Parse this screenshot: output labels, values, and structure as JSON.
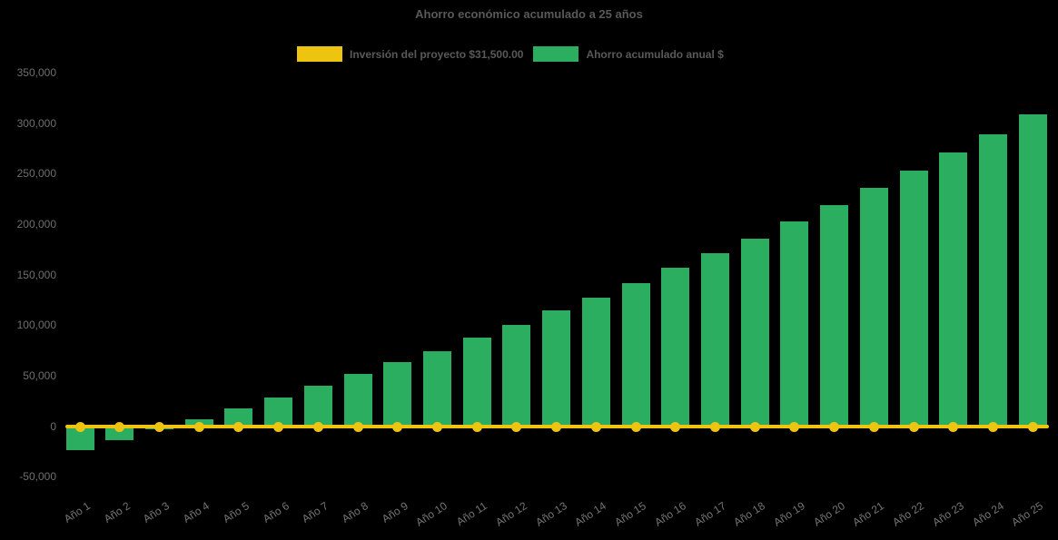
{
  "title": "Ahorro económico acumulado a 25 años",
  "legend": [
    {
      "label": "Inversión del proyecto $31,500.00",
      "color": "#EDC511",
      "series_type": "line"
    },
    {
      "label": "Ahorro acumulado anual $",
      "color": "#2BAE60",
      "series_type": "bar"
    }
  ],
  "chart_data": {
    "type": "bar",
    "title": "Ahorro económico acumulado a 25 años",
    "categories": [
      "Año 1",
      "Año 2",
      "Año 3",
      "Año 4",
      "Año 5",
      "Año 6",
      "Año 7",
      "Año 8",
      "Año 9",
      "Año 10",
      "Año 11",
      "Año 12",
      "Año 13",
      "Año 14",
      "Año 15",
      "Año 16",
      "Año 17",
      "Año 18",
      "Año 19",
      "Año 20",
      "Año 21",
      "Año 22",
      "Año 23",
      "Año 24",
      "Año 25"
    ],
    "series": [
      {
        "name": "Ahorro acumulado anual $",
        "type": "bar",
        "color": "#2BAE60",
        "values": [
          -24000,
          -14000,
          -3500,
          7000,
          17500,
          28500,
          40000,
          51500,
          63000,
          74500,
          88000,
          100500,
          114500,
          127500,
          141500,
          156500,
          171000,
          186000,
          202500,
          218500,
          236000,
          253000,
          270500,
          289000,
          308500
        ]
      },
      {
        "name": "Inversión del proyecto $31,500.00",
        "type": "line",
        "color": "#EDC511",
        "marker": "circle",
        "investment_amount": 31500,
        "plotted_constant_value": 0
      }
    ],
    "ylim": [
      -50000,
      350000
    ],
    "ytick_step": 50000,
    "ytick_labels": [
      "350,000",
      "300,000",
      "250,000",
      "200,000",
      "150,000",
      "100,000",
      "50,000",
      "0",
      "-50,000"
    ],
    "xlabel": "",
    "ylabel": "",
    "grid": false,
    "legend_position": "top-center",
    "background_color": "#000000",
    "title_color": "#595959",
    "axis_label_color": "#6E6E6E"
  }
}
